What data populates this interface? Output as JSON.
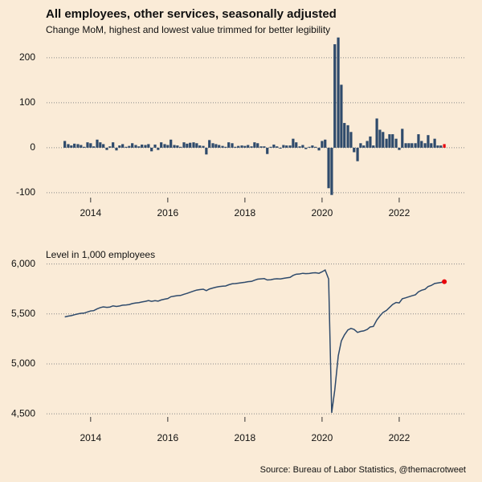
{
  "chart_data": [
    {
      "type": "bar",
      "title": "All employees, other services, seasonally adjusted",
      "subtitle": "Change MoM, highest and lowest value trimmed for better legibility",
      "color": "#2e4a6b",
      "highlight_color": "#e8000b",
      "grid": true,
      "xlim": [
        2012.9,
        2023.73
      ],
      "xticks": [
        2014,
        2016,
        2018,
        2020,
        2022
      ],
      "ylim": [
        -127,
        248
      ],
      "yticks": [
        -100,
        0,
        100,
        200
      ],
      "x": [
        2013.33,
        2013.42,
        2013.5,
        2013.58,
        2013.67,
        2013.75,
        2013.83,
        2013.92,
        2014,
        2014.08,
        2014.17,
        2014.25,
        2014.33,
        2014.42,
        2014.5,
        2014.58,
        2014.67,
        2014.75,
        2014.83,
        2014.92,
        2015,
        2015.08,
        2015.17,
        2015.25,
        2015.33,
        2015.42,
        2015.5,
        2015.58,
        2015.67,
        2015.75,
        2015.83,
        2015.92,
        2016,
        2016.08,
        2016.17,
        2016.25,
        2016.33,
        2016.42,
        2016.5,
        2016.58,
        2016.67,
        2016.75,
        2016.83,
        2016.92,
        2017,
        2017.08,
        2017.17,
        2017.25,
        2017.33,
        2017.42,
        2017.5,
        2017.58,
        2017.67,
        2017.75,
        2017.83,
        2017.92,
        2018,
        2018.08,
        2018.17,
        2018.25,
        2018.33,
        2018.42,
        2018.5,
        2018.58,
        2018.67,
        2018.75,
        2018.83,
        2018.92,
        2019,
        2019.08,
        2019.17,
        2019.25,
        2019.33,
        2019.42,
        2019.5,
        2019.58,
        2019.67,
        2019.75,
        2019.83,
        2019.92,
        2020,
        2020.08,
        2020.17,
        2020.25,
        2020.33,
        2020.42,
        2020.5,
        2020.58,
        2020.67,
        2020.75,
        2020.83,
        2020.92,
        2021,
        2021.08,
        2021.17,
        2021.25,
        2021.33,
        2021.42,
        2021.5,
        2021.58,
        2021.67,
        2021.75,
        2021.83,
        2021.92,
        2022,
        2022.08,
        2022.17,
        2022.25,
        2022.33,
        2022.42,
        2022.5,
        2022.58,
        2022.67,
        2022.75,
        2022.83,
        2022.92,
        2023,
        2023.08,
        2023.17
      ],
      "values": [
        15,
        8,
        5,
        9,
        8,
        6,
        2,
        12,
        10,
        3,
        18,
        12,
        8,
        -5,
        3,
        12,
        -6,
        5,
        8,
        2,
        4,
        10,
        6,
        3,
        7,
        6,
        8,
        -8,
        7,
        -5,
        12,
        8,
        6,
        18,
        6,
        5,
        2,
        12,
        9,
        11,
        12,
        10,
        5,
        4,
        -15,
        17,
        10,
        8,
        6,
        4,
        2,
        12,
        10,
        2,
        4,
        5,
        4,
        6,
        3,
        12,
        10,
        3,
        3,
        -14,
        2,
        7,
        3,
        -2,
        6,
        5,
        5,
        20,
        12,
        3,
        6,
        -3,
        2,
        5,
        2,
        -6,
        15,
        18,
        -90,
        -105,
        230,
        245,
        140,
        55,
        50,
        35,
        -10,
        -30,
        10,
        5,
        15,
        25,
        5,
        65,
        40,
        35,
        20,
        30,
        30,
        20,
        -5,
        42,
        10,
        10,
        10,
        10,
        30,
        15,
        10,
        28,
        10,
        20,
        5,
        5,
        8
      ]
    },
    {
      "type": "line",
      "subtitle": "Level in 1,000 employees",
      "source": "Source: Bureau of Labor Statistics, @themacrotweet",
      "color": "#2e4a6b",
      "highlight_color": "#e8000b",
      "grid": true,
      "xlim": [
        2012.9,
        2023.73
      ],
      "xticks": [
        2014,
        2016,
        2018,
        2020,
        2022
      ],
      "ylim": [
        4380,
        6150
      ],
      "yticks": [
        {
          "value": 4500,
          "label": "4,500"
        },
        {
          "value": 5000,
          "label": "5,000"
        },
        {
          "value": 5500,
          "label": "5,500"
        },
        {
          "value": 6000,
          "label": "6,000"
        }
      ],
      "x": [
        2013.33,
        2013.42,
        2013.5,
        2013.58,
        2013.67,
        2013.75,
        2013.83,
        2013.92,
        2014,
        2014.08,
        2014.17,
        2014.25,
        2014.33,
        2014.42,
        2014.5,
        2014.58,
        2014.67,
        2014.75,
        2014.83,
        2014.92,
        2015,
        2015.08,
        2015.17,
        2015.25,
        2015.33,
        2015.42,
        2015.5,
        2015.58,
        2015.67,
        2015.75,
        2015.83,
        2015.92,
        2016,
        2016.08,
        2016.17,
        2016.25,
        2016.33,
        2016.42,
        2016.5,
        2016.58,
        2016.67,
        2016.75,
        2016.83,
        2016.92,
        2017,
        2017.08,
        2017.17,
        2017.25,
        2017.33,
        2017.42,
        2017.5,
        2017.58,
        2017.67,
        2017.75,
        2017.83,
        2017.92,
        2018,
        2018.08,
        2018.17,
        2018.25,
        2018.33,
        2018.42,
        2018.5,
        2018.58,
        2018.67,
        2018.75,
        2018.83,
        2018.92,
        2019,
        2019.08,
        2019.17,
        2019.25,
        2019.33,
        2019.42,
        2019.5,
        2019.58,
        2019.67,
        2019.75,
        2019.83,
        2019.92,
        2020,
        2020.08,
        2020.17,
        2020.25,
        2020.33,
        2020.42,
        2020.5,
        2020.58,
        2020.67,
        2020.75,
        2020.83,
        2020.92,
        2021,
        2021.08,
        2021.17,
        2021.25,
        2021.33,
        2021.42,
        2021.5,
        2021.58,
        2021.67,
        2021.75,
        2021.83,
        2021.92,
        2022,
        2022.08,
        2022.17,
        2022.25,
        2022.33,
        2022.42,
        2022.5,
        2022.58,
        2022.67,
        2022.75,
        2022.83,
        2022.92,
        2023,
        2023.08,
        2023.17
      ],
      "values": [
        5470,
        5478,
        5483,
        5492,
        5500,
        5506,
        5508,
        5520,
        5530,
        5533,
        5551,
        5563,
        5571,
        5566,
        5569,
        5581,
        5575,
        5580,
        5588,
        5590,
        5594,
        5604,
        5610,
        5613,
        5620,
        5626,
        5634,
        5626,
        5633,
        5628,
        5640,
        5648,
        5654,
        5672,
        5678,
        5683,
        5685,
        5697,
        5706,
        5717,
        5729,
        5739,
        5744,
        5748,
        5733,
        5750,
        5760,
        5768,
        5774,
        5778,
        5780,
        5792,
        5802,
        5804,
        5808,
        5813,
        5817,
        5823,
        5826,
        5838,
        5848,
        5851,
        5854,
        5840,
        5842,
        5849,
        5852,
        5850,
        5856,
        5861,
        5866,
        5886,
        5898,
        5901,
        5907,
        5904,
        5906,
        5911,
        5913,
        5907,
        5922,
        5940,
        5850,
        4510,
        4740,
        5080,
        5230,
        5290,
        5340,
        5355,
        5345,
        5315,
        5325,
        5330,
        5345,
        5370,
        5375,
        5440,
        5480,
        5515,
        5535,
        5565,
        5595,
        5615,
        5610,
        5652,
        5662,
        5672,
        5682,
        5692,
        5722,
        5737,
        5747,
        5775,
        5785,
        5805,
        5810,
        5815,
        5823
      ]
    }
  ]
}
